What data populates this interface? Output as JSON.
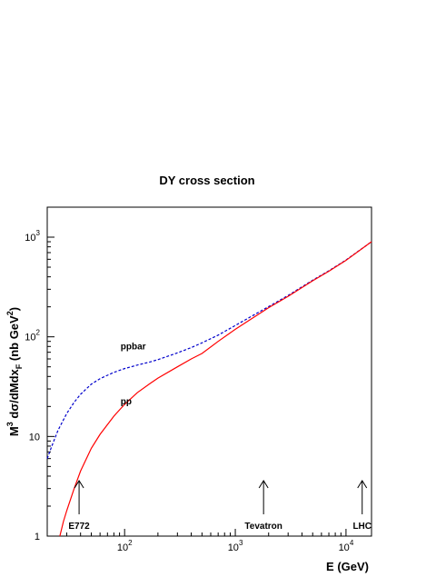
{
  "chart_data": {
    "type": "line",
    "title": "DY cross section",
    "xlabel": "E (GeV)",
    "ylabel": "M³ dσ/dMdx_F (nb GeV²)",
    "xscale": "log",
    "yscale": "log",
    "xlim": [
      20,
      17000
    ],
    "ylim": [
      1,
      2000
    ],
    "grid": false,
    "x_ticks": [
      {
        "value": 100,
        "base": "10",
        "exp": "2"
      },
      {
        "value": 1000,
        "base": "10",
        "exp": "3"
      },
      {
        "value": 10000,
        "base": "10",
        "exp": "4"
      }
    ],
    "y_ticks": [
      {
        "value": 1,
        "base": "1",
        "exp": ""
      },
      {
        "value": 10,
        "base": "10",
        "exp": ""
      },
      {
        "value": 100,
        "base": "10",
        "exp": "2"
      },
      {
        "value": 1000,
        "base": "10",
        "exp": "3"
      }
    ],
    "series": [
      {
        "name": "ppbar",
        "color": "#0000cc",
        "style": "dashed",
        "x": [
          20,
          22,
          25,
          30,
          35,
          40,
          50,
          60,
          80,
          100,
          130,
          170,
          200,
          300,
          400,
          500,
          700,
          1000,
          2000,
          3000,
          5000,
          7000,
          10000,
          17000
        ],
        "y": [
          6,
          8,
          11.5,
          17,
          22,
          26.5,
          33.5,
          38,
          44,
          48,
          52,
          56,
          59,
          69,
          78,
          87,
          104,
          130,
          201,
          260,
          370,
          460,
          590,
          900
        ]
      },
      {
        "name": "pp",
        "color": "#ff0000",
        "style": "solid",
        "x": [
          26,
          28,
          30,
          35,
          40,
          50,
          60,
          80,
          100,
          130,
          170,
          200,
          300,
          400,
          500,
          700,
          1000,
          2000,
          3000,
          5000,
          7000,
          10000,
          17000
        ],
        "y": [
          1,
          1.4,
          1.8,
          3,
          4.5,
          7.6,
          10.5,
          16,
          21,
          27.5,
          34,
          38.5,
          50,
          60,
          68,
          90,
          119,
          196,
          255,
          365,
          455,
          585,
          900
        ]
      }
    ],
    "annotations": [
      {
        "text": "ppbar",
        "x": 92,
        "y": 75,
        "kind": "label"
      },
      {
        "text": "pp",
        "x": 92,
        "y": 21,
        "kind": "label"
      },
      {
        "text": "E772",
        "x": 38.8,
        "kind": "arrow"
      },
      {
        "text": "Tevatron",
        "x": 1800,
        "kind": "arrow"
      },
      {
        "text": "LHC",
        "x": 14000,
        "kind": "arrow"
      }
    ]
  }
}
